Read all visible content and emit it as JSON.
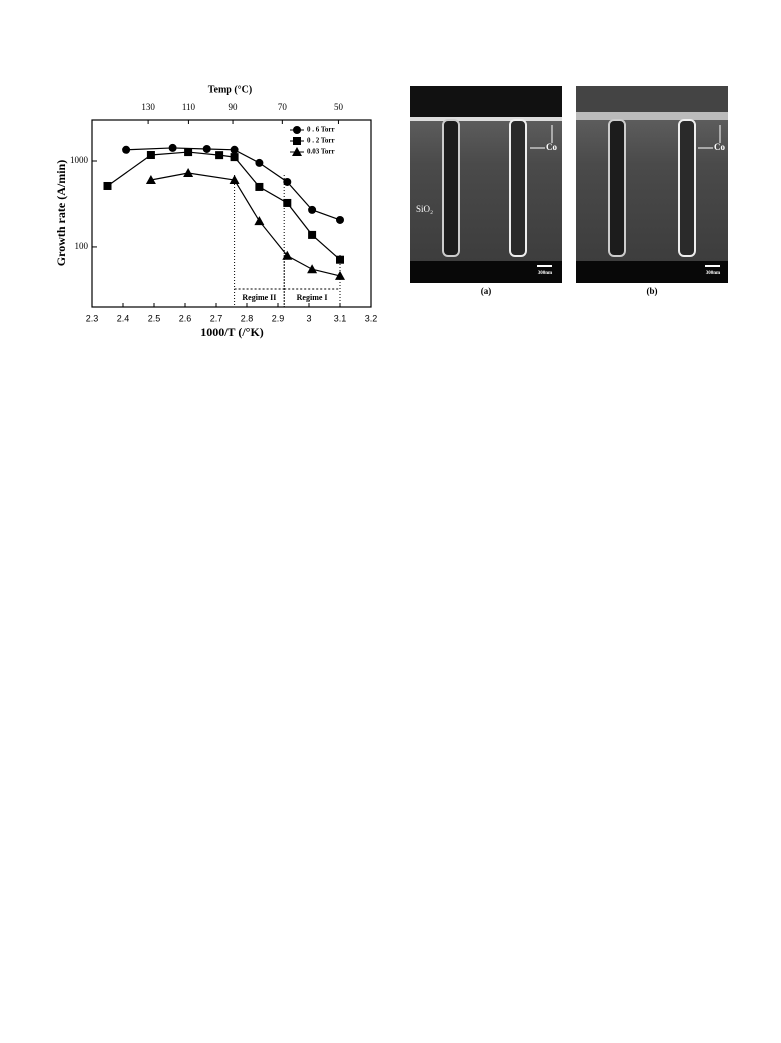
{
  "chart_data": {
    "type": "line",
    "y_label": "Growth rate (A/min)",
    "x_label": "1000/T (/°K)",
    "x2_label": "Temp (°C)",
    "log_y": true,
    "ylim": [
      20,
      3000
    ],
    "yticks": [
      100,
      1000
    ],
    "xlim": [
      2.3,
      3.2
    ],
    "xticks": [
      2.3,
      2.4,
      2.5,
      2.6,
      2.7,
      2.8,
      2.9,
      3.0,
      3.1,
      3.2
    ],
    "x2ticks": [
      {
        "value": 2.481,
        "label": "130"
      },
      {
        "value": 2.611,
        "label": "110"
      },
      {
        "value": 2.755,
        "label": "90"
      },
      {
        "value": 2.914,
        "label": "70"
      },
      {
        "value": 3.095,
        "label": "50"
      }
    ],
    "legend": "upper right",
    "series": [
      {
        "name": "0 . 6 Torr",
        "marker": "circle",
        "color": "#000000",
        "x": [
          2.41,
          2.56,
          2.67,
          2.76,
          2.84,
          2.93,
          3.01,
          3.1
        ],
        "values": [
          1350,
          1420,
          1380,
          1350,
          950,
          570,
          270,
          206
        ]
      },
      {
        "name": "0 . 2 Torr",
        "marker": "square",
        "color": "#000000",
        "x": [
          2.35,
          2.49,
          2.61,
          2.71,
          2.76,
          2.84,
          2.93,
          3.01,
          3.1
        ],
        "values": [
          512,
          1174,
          1270,
          1170,
          1110,
          499,
          325,
          138,
          71
        ]
      },
      {
        "name": "0.03 Torr",
        "marker": "triangle",
        "color": "#000000",
        "x": [
          2.49,
          2.61,
          2.76,
          2.84,
          2.93,
          3.01,
          3.1
        ],
        "values": [
          601,
          725,
          601,
          200,
          79,
          55,
          46
        ]
      }
    ],
    "regimes": [
      {
        "label": "Regime II",
        "from": 2.76,
        "to": 2.92
      },
      {
        "label": "Regime I",
        "from": 2.92,
        "to": 3.1
      }
    ]
  },
  "images": {
    "a": {
      "caption": "(a)",
      "label_co": "Co",
      "label_sio2": "SiO₂",
      "scale": "300nm"
    },
    "b": {
      "caption": "(b)",
      "label_co": "Co",
      "scale": "300nm"
    }
  }
}
